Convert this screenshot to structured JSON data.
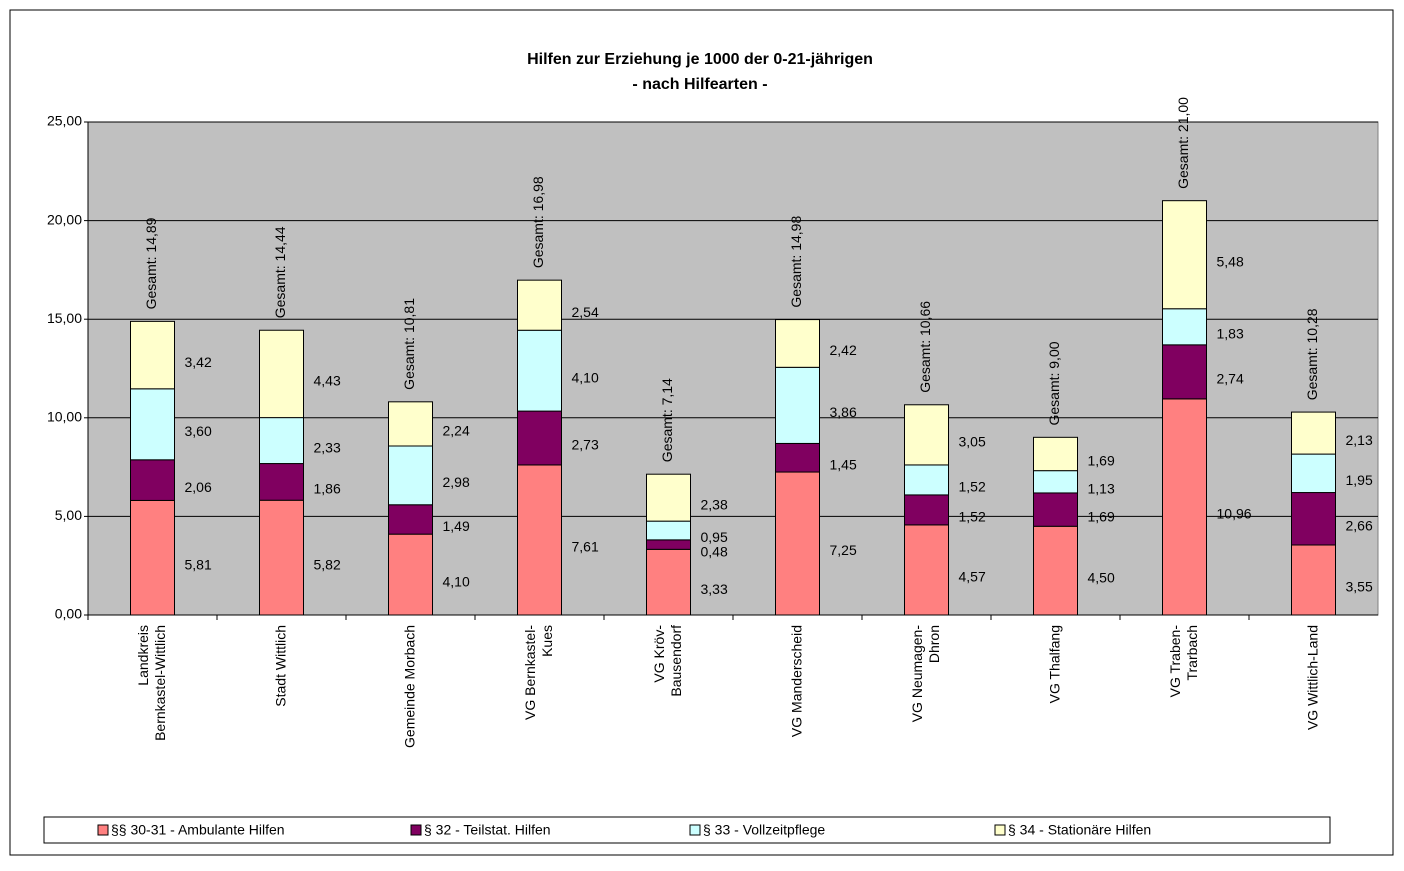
{
  "chart_data": {
    "type": "stacked_bar",
    "title": "Hilfen zur Erziehung je 1000 der 0-21-jährigen",
    "subtitle": "- nach Hilfearten -",
    "categories": [
      "Landkreis\nBernkastel-Wittlich",
      "Stadt Wittlich",
      "Gemeinde Morbach",
      "VG Bernkastel-\nKues",
      "VG Kröv-\nBausendorf",
      "VG Manderscheid",
      "VG Neumagen-\nDhron",
      "VG Thalfang",
      "VG Traben-\nTrarbach",
      "VG Wittlich-Land"
    ],
    "series": [
      {
        "name": "§§ 30-31 - Ambulante Hilfen",
        "color": "#ff8080",
        "values": [
          5.81,
          5.82,
          4.1,
          7.61,
          3.33,
          7.25,
          4.57,
          4.5,
          10.96,
          3.55
        ],
        "value_labels": [
          "5,81",
          "5,82",
          "4,10",
          "7,61",
          "3,33",
          "7,25",
          "4,57",
          "4,50",
          "10,96",
          "3,55"
        ]
      },
      {
        "name": "§ 32 - Teilstat. Hilfen",
        "color": "#800060",
        "values": [
          2.06,
          1.86,
          1.49,
          2.73,
          0.48,
          1.45,
          1.52,
          1.69,
          2.74,
          2.66
        ],
        "value_labels": [
          "2,06",
          "1,86",
          "1,49",
          "2,73",
          "0,48",
          "1,45",
          "1,52",
          "1,69",
          "2,74",
          "2,66"
        ]
      },
      {
        "name": "§ 33 - Vollzeitpflege",
        "color": "#ccffff",
        "values": [
          3.6,
          2.33,
          2.98,
          4.1,
          0.95,
          3.86,
          1.52,
          1.13,
          1.83,
          1.95
        ],
        "value_labels": [
          "3,60",
          "2,33",
          "2,98",
          "4,10",
          "0,95",
          "3,86",
          "1,52",
          "1,13",
          "1,83",
          "1,95"
        ]
      },
      {
        "name": "§ 34 - Stationäre Hilfen",
        "color": "#ffffcc",
        "values": [
          3.42,
          4.43,
          2.24,
          2.54,
          2.38,
          2.42,
          3.05,
          1.69,
          5.48,
          2.13
        ],
        "value_labels": [
          "3,42",
          "4,43",
          "2,24",
          "2,54",
          "2,38",
          "2,42",
          "3,05",
          "1,69",
          "5,48",
          "2,13"
        ]
      }
    ],
    "totals": {
      "values": [
        14.89,
        14.44,
        10.81,
        16.98,
        7.14,
        14.98,
        10.66,
        9.0,
        21.0,
        10.28
      ],
      "value_labels": [
        "Gesamt: 14,89",
        "Gesamt: 14,44",
        "Gesamt: 10,81",
        "Gesamt: 16,98",
        "Gesamt: 7,14",
        "Gesamt: 14,98",
        "Gesamt: 10,66",
        "Gesamt: 9,00",
        "Gesamt: 21,00",
        "Gesamt: 10,28"
      ]
    },
    "ylim": [
      0,
      25
    ],
    "yticks": [
      {
        "value": 0,
        "label": "0,00"
      },
      {
        "value": 5,
        "label": "5,00"
      },
      {
        "value": 10,
        "label": "10,00"
      },
      {
        "value": 15,
        "label": "15,00"
      },
      {
        "value": 20,
        "label": "20,00"
      },
      {
        "value": 25,
        "label": "25,00"
      }
    ],
    "grid": true,
    "plot_background": "#c0c0c0",
    "legend": "bottom"
  }
}
